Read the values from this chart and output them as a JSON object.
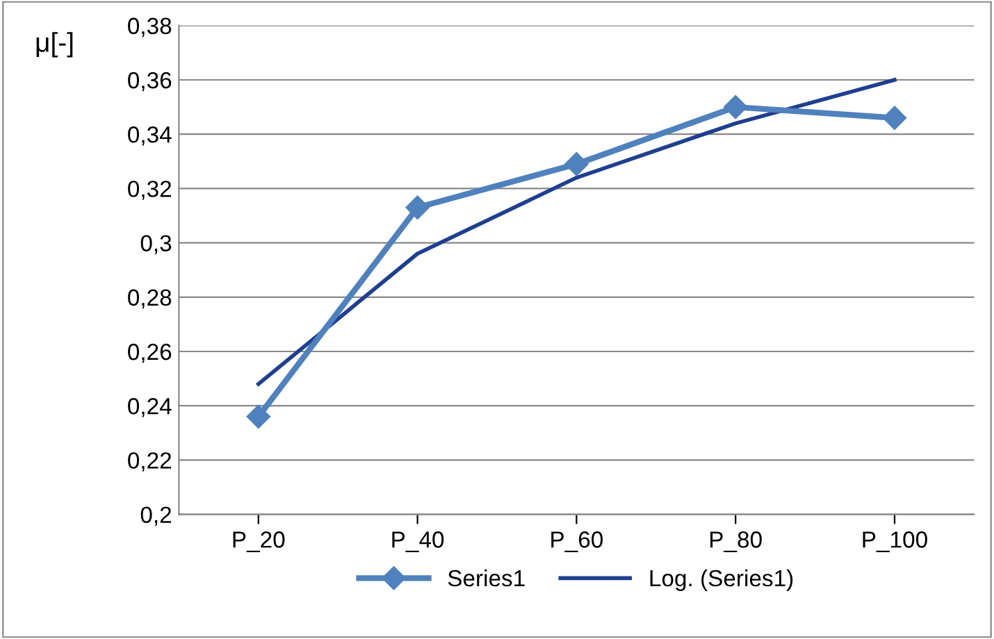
{
  "chart_data": {
    "type": "line",
    "ylabel": "μ[-]",
    "categories": [
      "P_20",
      "P_40",
      "P_60",
      "P_80",
      "P_100"
    ],
    "series": [
      {
        "name": "Series1",
        "color": "#4f81bd",
        "values": [
          0.236,
          0.313,
          0.329,
          0.35,
          0.346
        ],
        "marker": "diamond"
      },
      {
        "name": "Log. (Series1)",
        "color": "#1f3f8f",
        "values": [
          0.248,
          0.296,
          0.324,
          0.344,
          0.36
        ],
        "marker": "none"
      }
    ],
    "ylim": [
      0.2,
      0.38
    ],
    "yticks": [
      {
        "value": 0.2,
        "label": "0,2"
      },
      {
        "value": 0.22,
        "label": "0,22"
      },
      {
        "value": 0.24,
        "label": "0,24"
      },
      {
        "value": 0.26,
        "label": "0,26"
      },
      {
        "value": 0.28,
        "label": "0,28"
      },
      {
        "value": 0.3,
        "label": "0,3"
      },
      {
        "value": 0.32,
        "label": "0,32"
      },
      {
        "value": 0.34,
        "label": "0,34"
      },
      {
        "value": 0.36,
        "label": "0,36"
      },
      {
        "value": 0.38,
        "label": "0,38"
      }
    ],
    "grid": "y",
    "legend": "bottom"
  }
}
